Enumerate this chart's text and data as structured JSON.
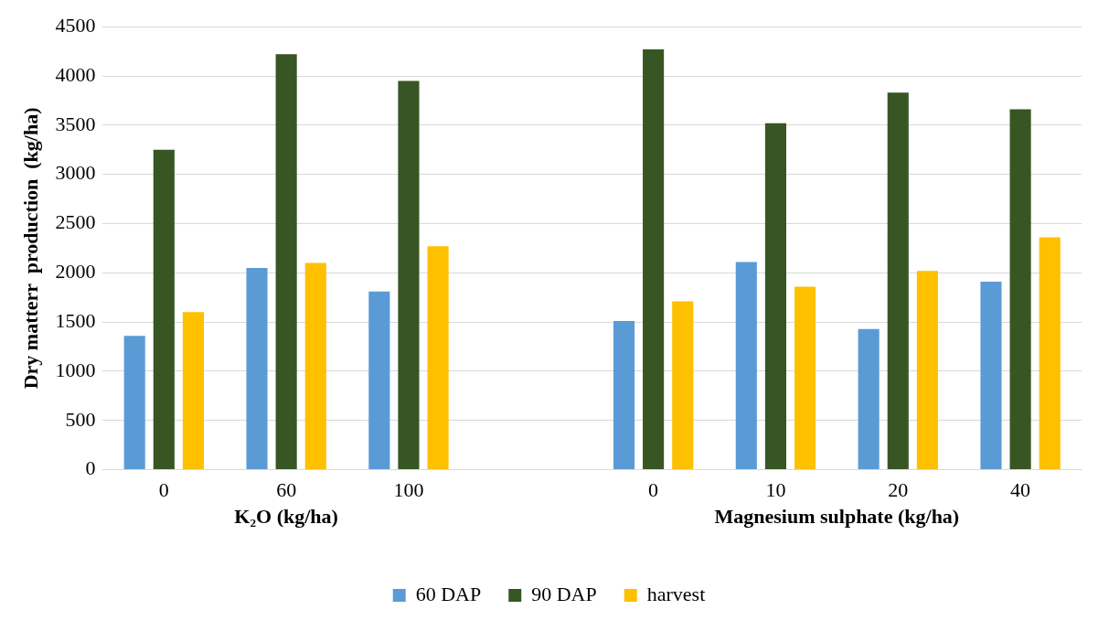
{
  "chart_data": {
    "type": "bar",
    "ylabel": "Dry matterr  production  (kg/ha)",
    "categories": [
      "0",
      "60",
      "100",
      null,
      "0",
      "10",
      "20",
      "40"
    ],
    "series": [
      {
        "name": "60 DAP",
        "color": "#5b9bd5",
        "values": [
          1360,
          2050,
          1810,
          null,
          1510,
          2110,
          1430,
          1910
        ]
      },
      {
        "name": "90 DAP",
        "color": "#375623",
        "values": [
          3250,
          4220,
          3950,
          null,
          4270,
          3520,
          3830,
          3660
        ]
      },
      {
        "name": "harvest",
        "color": "#ffc000",
        "values": [
          1600,
          2100,
          2270,
          null,
          1710,
          1860,
          2020,
          2360
        ]
      }
    ],
    "annotations": [
      "K₂O (kg/ha)",
      "Magnesium sulphate (kg/ha)"
    ],
    "ylim": [
      0,
      4500
    ],
    "yticks": [
      0,
      500,
      1000,
      1500,
      2000,
      2500,
      3000,
      3500,
      4000,
      4500
    ],
    "grid": "y",
    "legend": "bottom"
  }
}
